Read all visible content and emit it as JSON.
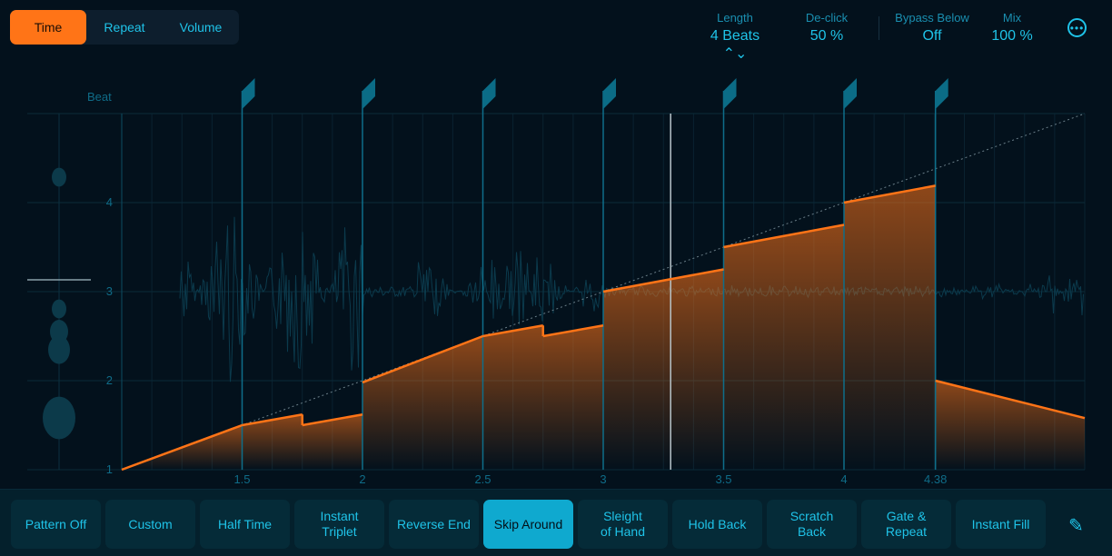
{
  "tabs": [
    {
      "label": "Time",
      "active": true
    },
    {
      "label": "Repeat",
      "active": false
    },
    {
      "label": "Volume",
      "active": false
    }
  ],
  "params": {
    "length": {
      "label": "Length",
      "value": "4 Beats ⌃⌄"
    },
    "declick": {
      "label": "De-click",
      "value": "50 %"
    },
    "bypass": {
      "label": "Bypass Below",
      "value": "Off"
    },
    "mix": {
      "label": "Mix",
      "value": "100 %"
    }
  },
  "more_icon": "ellipsis-circle-icon",
  "chart_data": {
    "type": "line",
    "ylabel": "Beat",
    "y_ticks": [
      "1",
      "2",
      "3",
      "4"
    ],
    "x_ticks": [
      "1.5",
      "2",
      "2.5",
      "3",
      "3.5",
      "4",
      "4.38"
    ],
    "x_tick_values": [
      1.5,
      2,
      2.5,
      3,
      3.5,
      4,
      4.38
    ],
    "xlim": [
      1,
      5
    ],
    "ylim": [
      1,
      5
    ],
    "markers": [
      1.5,
      2,
      2.5,
      3,
      3.5,
      4,
      4.38
    ],
    "playhead": 3.28,
    "segments": [
      [
        [
          1,
          1
        ],
        [
          1.5,
          1.5
        ]
      ],
      [
        [
          1.5,
          1.5
        ],
        [
          1.75,
          1.62
        ]
      ],
      [
        [
          1.75,
          1.5
        ],
        [
          2,
          1.62
        ]
      ],
      [
        [
          2,
          1.98
        ],
        [
          2.5,
          2.5
        ]
      ],
      [
        [
          2.5,
          2.5
        ],
        [
          2.75,
          2.62
        ]
      ],
      [
        [
          2.75,
          2.5
        ],
        [
          3,
          2.62
        ]
      ],
      [
        [
          3,
          3
        ],
        [
          3.5,
          3.25
        ]
      ],
      [
        [
          3.5,
          3.5
        ],
        [
          4,
          3.75
        ]
      ],
      [
        [
          4,
          4
        ],
        [
          4.38,
          4.19
        ]
      ],
      [
        [
          4.38,
          2
        ],
        [
          5,
          1.58
        ]
      ]
    ],
    "reference_line": [
      [
        1,
        1
      ],
      [
        5,
        5
      ]
    ],
    "colors": {
      "curve": "#ff7417",
      "marker": "#0b6c86",
      "accent": "#1fc3e8"
    }
  },
  "presets": [
    {
      "label": "Pattern Off"
    },
    {
      "label": "Custom"
    },
    {
      "label": "Half Time"
    },
    {
      "label": "Instant\nTriplet"
    },
    {
      "label": "Reverse End"
    },
    {
      "label": "Skip Around",
      "active": true
    },
    {
      "label": "Sleight\nof Hand"
    },
    {
      "label": "Hold Back"
    },
    {
      "label": "Scratch\nBack"
    },
    {
      "label": "Gate &\nRepeat"
    },
    {
      "label": "Instant Fill"
    }
  ],
  "pencil_icon": "pencil-icon"
}
